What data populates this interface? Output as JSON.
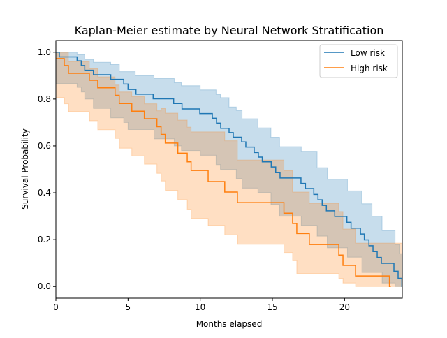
{
  "chart_data": {
    "type": "line",
    "title": "Kaplan-Meier estimate by Neural Network Stratification",
    "xlabel": "Months elapsed",
    "ylabel": "Survival Probability",
    "xlim": [
      0,
      24
    ],
    "ylim": [
      -0.05,
      1.05
    ],
    "xticks": [
      0,
      5,
      10,
      15,
      20
    ],
    "yticks": [
      0.0,
      0.2,
      0.4,
      0.6,
      0.8,
      1.0
    ],
    "ytick_labels": [
      "0.0",
      "0.2",
      "0.4",
      "0.6",
      "0.8",
      "1.0"
    ],
    "grid": false,
    "legend_position": "top-right",
    "step": true,
    "series": [
      {
        "name": "Low risk",
        "color": "#1f77b4",
        "t": [
          0,
          0.24,
          1.47,
          1.76,
          2.0,
          2.6,
          3.8,
          4.7,
          5.0,
          5.55,
          6.74,
          8.16,
          8.74,
          9.97,
          10.84,
          11.13,
          11.42,
          12.0,
          12.29,
          12.87,
          13.16,
          13.74,
          14.03,
          14.3,
          14.92,
          15.23,
          15.53,
          16.98,
          17.29,
          17.87,
          18.16,
          18.45,
          18.74,
          19.32,
          20.16,
          20.45,
          21.1,
          21.37,
          21.69,
          21.97,
          22.26,
          22.55,
          23.42,
          23.71,
          23.97
        ],
        "survival": [
          1.0,
          0.98,
          0.963,
          0.943,
          0.923,
          0.904,
          0.884,
          0.864,
          0.841,
          0.821,
          0.801,
          0.781,
          0.758,
          0.738,
          0.718,
          0.697,
          0.675,
          0.657,
          0.637,
          0.617,
          0.595,
          0.572,
          0.552,
          0.532,
          0.51,
          0.486,
          0.463,
          0.44,
          0.418,
          0.393,
          0.37,
          0.346,
          0.323,
          0.299,
          0.274,
          0.249,
          0.224,
          0.199,
          0.174,
          0.149,
          0.124,
          0.099,
          0.065,
          0.035,
          0.0
        ],
        "ci_t": [
          0,
          1.47,
          1.76,
          2.0,
          2.6,
          3.8,
          4.4,
          4.7,
          5.0,
          5.5,
          6.8,
          8.2,
          8.7,
          10.0,
          11.1,
          11.4,
          12.0,
          12.5,
          12.9,
          14.0,
          14.9,
          15.5,
          17.0,
          18.1,
          18.8,
          20.2,
          21.2,
          21.9,
          22.6,
          23.5,
          23.8,
          24
        ],
        "ci_lower": [
          0.866,
          0.85,
          0.83,
          0.8,
          0.76,
          0.72,
          0.72,
          0.7,
          0.67,
          0.67,
          0.63,
          0.6,
          0.58,
          0.56,
          0.52,
          0.5,
          0.5,
          0.46,
          0.42,
          0.4,
          0.35,
          0.3,
          0.26,
          0.215,
          0.165,
          0.125,
          0.06,
          0.06,
          0.015,
          0.0,
          0.0,
          0.0
        ],
        "ci_upper": [
          1.0,
          0.99,
          0.99,
          0.97,
          0.957,
          0.947,
          0.917,
          0.917,
          0.917,
          0.9,
          0.888,
          0.87,
          0.857,
          0.839,
          0.82,
          0.806,
          0.766,
          0.752,
          0.716,
          0.677,
          0.637,
          0.597,
          0.577,
          0.507,
          0.458,
          0.408,
          0.353,
          0.3,
          0.239,
          0.179,
          0.14,
          0.14
        ]
      },
      {
        "name": "High risk",
        "color": "#ff7f0e",
        "t": [
          0,
          0.58,
          0.87,
          2.32,
          2.9,
          4.1,
          4.39,
          5.26,
          6.13,
          7.0,
          7.29,
          7.58,
          8.45,
          9.1,
          9.37,
          10.55,
          11.7,
          12.58,
          15.8,
          16.4,
          16.69,
          17.56,
          19.6,
          19.89,
          20.76,
          23.11,
          23.2
        ],
        "survival": [
          0.973,
          0.943,
          0.91,
          0.88,
          0.848,
          0.816,
          0.781,
          0.748,
          0.716,
          0.682,
          0.649,
          0.612,
          0.569,
          0.532,
          0.495,
          0.448,
          0.403,
          0.358,
          0.313,
          0.269,
          0.226,
          0.179,
          0.134,
          0.09,
          0.045,
          0.0,
          0.0
        ],
        "ci_t": [
          0,
          0.58,
          0.87,
          2.32,
          2.9,
          4.1,
          4.39,
          5.26,
          6.13,
          7.0,
          7.29,
          7.58,
          8.45,
          9.1,
          9.37,
          10.55,
          11.7,
          12.58,
          15.8,
          16.4,
          16.69,
          17.56,
          19.6,
          19.89,
          20.76,
          23.11
        ],
        "ci_lower": [
          0.806,
          0.78,
          0.746,
          0.707,
          0.669,
          0.632,
          0.59,
          0.557,
          0.522,
          0.483,
          0.45,
          0.41,
          0.37,
          0.33,
          0.29,
          0.26,
          0.22,
          0.18,
          0.145,
          0.11,
          0.055,
          0.055,
          0.035,
          0.015,
          0.0,
          0.0
        ],
        "ci_upper": [
          1.0,
          1.0,
          0.96,
          0.93,
          0.895,
          0.86,
          0.83,
          0.81,
          0.78,
          0.75,
          0.76,
          0.74,
          0.71,
          0.68,
          0.66,
          0.66,
          0.622,
          0.54,
          0.495,
          0.403,
          0.403,
          0.355,
          0.32,
          0.245,
          0.185,
          0.185
        ]
      }
    ]
  }
}
